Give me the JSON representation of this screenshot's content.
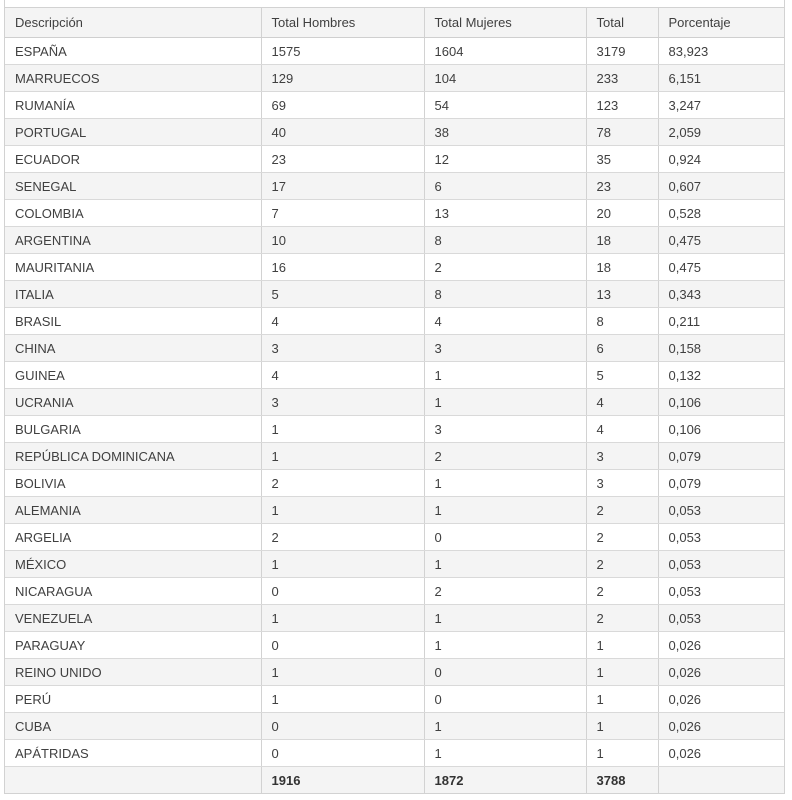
{
  "table": {
    "columns": [
      {
        "key": "descripcion",
        "label": "Descripción"
      },
      {
        "key": "hombres",
        "label": "Total Hombres"
      },
      {
        "key": "mujeres",
        "label": "Total Mujeres"
      },
      {
        "key": "total",
        "label": "Total"
      },
      {
        "key": "porcentaje",
        "label": "Porcentaje"
      }
    ],
    "rows": [
      [
        "ESPAÑA",
        "1575",
        "1604",
        "3179",
        "83,923"
      ],
      [
        "MARRUECOS",
        "129",
        "104",
        "233",
        "6,151"
      ],
      [
        "RUMANÍA",
        "69",
        "54",
        "123",
        "3,247"
      ],
      [
        "PORTUGAL",
        "40",
        "38",
        "78",
        "2,059"
      ],
      [
        "ECUADOR",
        "23",
        "12",
        "35",
        "0,924"
      ],
      [
        "SENEGAL",
        "17",
        "6",
        "23",
        "0,607"
      ],
      [
        "COLOMBIA",
        "7",
        "13",
        "20",
        "0,528"
      ],
      [
        "ARGENTINA",
        "10",
        "8",
        "18",
        "0,475"
      ],
      [
        "MAURITANIA",
        "16",
        "2",
        "18",
        "0,475"
      ],
      [
        "ITALIA",
        "5",
        "8",
        "13",
        "0,343"
      ],
      [
        "BRASIL",
        "4",
        "4",
        "8",
        "0,211"
      ],
      [
        "CHINA",
        "3",
        "3",
        "6",
        "0,158"
      ],
      [
        "GUINEA",
        "4",
        "1",
        "5",
        "0,132"
      ],
      [
        "UCRANIA",
        "3",
        "1",
        "4",
        "0,106"
      ],
      [
        "BULGARIA",
        "1",
        "3",
        "4",
        "0,106"
      ],
      [
        "REPÚBLICA DOMINICANA",
        "1",
        "2",
        "3",
        "0,079"
      ],
      [
        "BOLIVIA",
        "2",
        "1",
        "3",
        "0,079"
      ],
      [
        "ALEMANIA",
        "1",
        "1",
        "2",
        "0,053"
      ],
      [
        "ARGELIA",
        "2",
        "0",
        "2",
        "0,053"
      ],
      [
        "MÉXICO",
        "1",
        "1",
        "2",
        "0,053"
      ],
      [
        "NICARAGUA",
        "0",
        "2",
        "2",
        "0,053"
      ],
      [
        "VENEZUELA",
        "1",
        "1",
        "2",
        "0,053"
      ],
      [
        "PARAGUAY",
        "0",
        "1",
        "1",
        "0,026"
      ],
      [
        "REINO UNIDO",
        "1",
        "0",
        "1",
        "0,026"
      ],
      [
        "PERÚ",
        "1",
        "0",
        "1",
        "0,026"
      ],
      [
        "CUBA",
        "0",
        "1",
        "1",
        "0,026"
      ],
      [
        "APÁTRIDAS",
        "0",
        "1",
        "1",
        "0,026"
      ]
    ],
    "totals": {
      "descripcion": "",
      "hombres": "1916",
      "mujeres": "1872",
      "total": "3788",
      "porcentaje": ""
    }
  },
  "colors": {
    "stripe_bg": "#f4f4f4",
    "header_bg": "#f4f4f4",
    "totals_bg": "#f4f4f4",
    "border": "#d2d2d2",
    "text": "#404040"
  }
}
